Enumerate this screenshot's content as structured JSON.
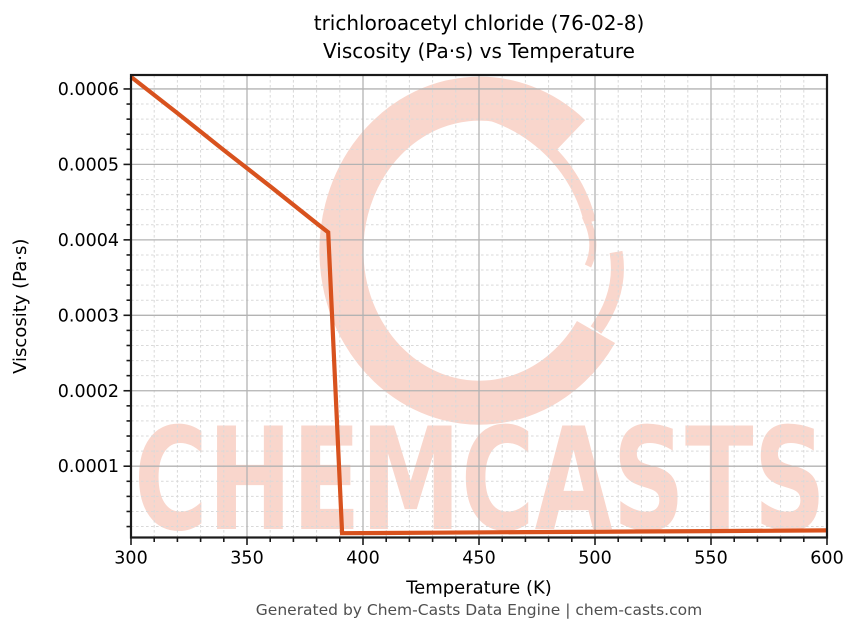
{
  "header": {
    "title_line1": "trichloroacetyl chloride (76-02-8)",
    "title_line2": "Viscosity (Pa·s) vs Temperature"
  },
  "footer": {
    "text": "Generated by Chem-Casts Data Engine | chem-casts.com"
  },
  "watermark": {
    "text": "CHEMCASTS",
    "logo": "brush-c-swirl-icon",
    "color": "#f9d6cc"
  },
  "colors": {
    "line": "#d8521e",
    "grid_major": "#b3b3b3",
    "grid_minor": "#d9d9d9",
    "spine": "#1a1a1a",
    "tick_text": "#000000",
    "title_text": "#000000",
    "footer_text": "#4f4f4f"
  },
  "chart_data": {
    "type": "line",
    "title": "trichloroacetyl chloride (76-02-8) — Viscosity (Pa·s) vs Temperature",
    "xlabel": "Temperature (K)",
    "ylabel": "Viscosity (Pa·s)",
    "xlim": [
      300,
      600
    ],
    "ylim": [
      5.5e-06,
      0.0006185
    ],
    "x_major_ticks": [
      300,
      350,
      400,
      450,
      500,
      550,
      600
    ],
    "x_tick_labels": [
      "300",
      "350",
      "400",
      "450",
      "500",
      "550",
      "600"
    ],
    "x_minor_step": 10,
    "y_major_ticks": [
      0.0001,
      0.0002,
      0.0003,
      0.0004,
      0.0005,
      0.0006
    ],
    "y_tick_labels": [
      "0.0001",
      "0.0002",
      "0.0003",
      "0.0004",
      "0.0005",
      "0.0006"
    ],
    "y_minor_step": 2e-05,
    "grid": true,
    "legend": false,
    "series": [
      {
        "color": "#d8521e",
        "points": [
          [
            300,
            0.000616
          ],
          [
            320,
            0.000568
          ],
          [
            340,
            0.000519
          ],
          [
            360,
            0.000471
          ],
          [
            380,
            0.000422
          ],
          [
            385,
            0.00041
          ],
          [
            391,
            1.12e-05
          ],
          [
            430,
            1.19e-05
          ],
          [
            470,
            1.26e-05
          ],
          [
            510,
            1.33e-05
          ],
          [
            550,
            1.4e-05
          ],
          [
            600,
            1.49e-05
          ]
        ]
      }
    ]
  }
}
